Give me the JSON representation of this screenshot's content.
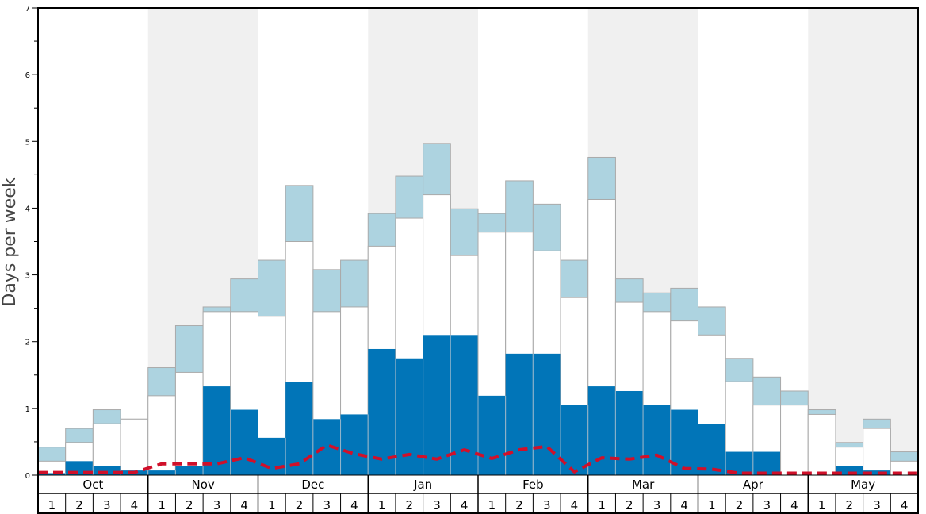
{
  "chart_data": {
    "type": "bar",
    "ylabel": "Days per week",
    "ylim": [
      0,
      7
    ],
    "yticks": [
      "0",
      "1",
      "2",
      "3",
      "4",
      "5",
      "6",
      "7"
    ],
    "months": [
      "Oct",
      "Nov",
      "Dec",
      "Jan",
      "Feb",
      "Mar",
      "Apr",
      "May"
    ],
    "weeks_per_month": 4,
    "week_labels": [
      "1",
      "2",
      "3",
      "4"
    ],
    "shaded_months": [
      "Nov",
      "Jan",
      "Mar",
      "May"
    ],
    "colors": {
      "dark": "#0175b8",
      "mid": "#ffffff",
      "light": "#add3e0",
      "line": "#d0102a",
      "shade": "#f0f0f0",
      "bar_edge": "#aaaaaa"
    },
    "series": [
      {
        "values": [
          0.03,
          0.21,
          0.14,
          0.07,
          0.07,
          0.14,
          1.33,
          0.98,
          0.56,
          1.4,
          0.84,
          0.91,
          1.89,
          1.75,
          2.1,
          2.1,
          1.19,
          1.82,
          1.82,
          1.05,
          1.33,
          1.26,
          1.05,
          0.98,
          0.77,
          0.35,
          0.35,
          0.0,
          0.0,
          0.14,
          0.07,
          0.0
        ]
      },
      {
        "values": [
          0.21,
          0.49,
          0.77,
          0.84,
          1.19,
          1.54,
          2.45,
          2.45,
          2.38,
          3.5,
          2.45,
          2.52,
          3.43,
          3.85,
          4.2,
          3.29,
          3.64,
          3.64,
          3.36,
          2.66,
          4.13,
          2.59,
          2.45,
          2.31,
          2.1,
          1.4,
          1.05,
          1.05,
          0.91,
          0.42,
          0.7,
          0.21
        ]
      },
      {
        "values": [
          0.42,
          0.7,
          0.98,
          0.84,
          1.61,
          2.24,
          2.52,
          2.94,
          3.22,
          4.34,
          3.08,
          3.22,
          3.92,
          4.48,
          4.97,
          3.99,
          3.92,
          4.41,
          4.06,
          3.22,
          4.76,
          2.94,
          2.73,
          2.8,
          2.52,
          1.75,
          1.47,
          1.26,
          0.98,
          0.49,
          0.84,
          0.35
        ]
      },
      {
        "values": [
          0.04,
          0.04,
          0.04,
          0.04,
          0.17,
          0.17,
          0.17,
          0.26,
          0.1,
          0.17,
          0.45,
          0.32,
          0.24,
          0.31,
          0.24,
          0.38,
          0.25,
          0.38,
          0.43,
          0.05,
          0.26,
          0.24,
          0.3,
          0.1,
          0.09,
          0.03,
          0.03,
          0.03,
          0.03,
          0.03,
          0.03,
          0.03
        ]
      }
    ]
  }
}
